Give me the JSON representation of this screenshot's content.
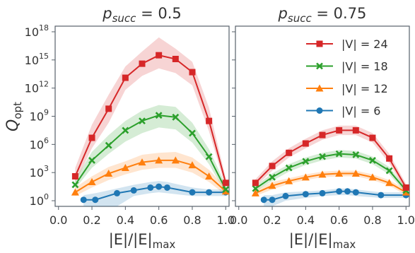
{
  "chart_data": [
    {
      "type": "line",
      "title_main": "p",
      "title_sub": "succ",
      "title_rest": " = 0.5",
      "xlabel_main": "|E|/|E|",
      "xlabel_sub": "max",
      "ylabel_main": "Q",
      "ylabel_sub": "opt",
      "y_scale": "log10",
      "ylim_exp": [
        -0.6,
        18.6
      ],
      "xlim": [
        0.0,
        1.0
      ],
      "x_ticks": [
        "0.0",
        "0.2",
        "0.4",
        "0.6",
        "0.8",
        "1.0"
      ],
      "y_ticks": [
        {
          "exp": 0,
          "base": "10",
          "power": "0"
        },
        {
          "exp": 3,
          "base": "10",
          "power": "3"
        },
        {
          "exp": 6,
          "base": "10",
          "power": "6"
        },
        {
          "exp": 9,
          "base": "10",
          "power": "9"
        },
        {
          "exp": 12,
          "base": "10",
          "power": "12"
        },
        {
          "exp": 15,
          "base": "10",
          "power": "15"
        },
        {
          "exp": 18,
          "base": "10",
          "power": "18"
        }
      ],
      "series": [
        {
          "name": "|V| = 24",
          "color": "#d62728",
          "marker": "square",
          "x": [
            0.1,
            0.2,
            0.3,
            0.4,
            0.5,
            0.6,
            0.7,
            0.8,
            0.9,
            1.0
          ],
          "log10_y": [
            2.6,
            6.7,
            9.8,
            13.1,
            14.6,
            15.5,
            15.1,
            13.7,
            8.5,
            1.9
          ],
          "band_low": [
            1.9,
            5.6,
            8.3,
            11.8,
            13.3,
            14.1,
            13.6,
            12.3,
            7.4,
            1.4
          ],
          "band_high": [
            3.5,
            8.1,
            11.3,
            14.3,
            15.9,
            17.4,
            16.2,
            14.8,
            9.9,
            2.4
          ]
        },
        {
          "name": "|V| = 18",
          "color": "#2ca02c",
          "marker": "x",
          "x": [
            0.1,
            0.2,
            0.3,
            0.4,
            0.5,
            0.6,
            0.7,
            0.8,
            0.9,
            1.0
          ],
          "log10_y": [
            1.7,
            4.3,
            5.9,
            7.5,
            8.5,
            9.1,
            8.9,
            7.2,
            4.7,
            1.2
          ],
          "band_low": [
            1.3,
            3.5,
            5.0,
            6.3,
            7.2,
            7.8,
            7.6,
            6.2,
            3.9,
            0.8
          ],
          "band_high": [
            2.3,
            5.2,
            7.0,
            8.5,
            9.6,
            10.2,
            10.0,
            8.3,
            5.5,
            1.7
          ]
        },
        {
          "name": "|V| = 12",
          "color": "#ff7f0e",
          "marker": "triangle",
          "x": [
            0.1,
            0.2,
            0.3,
            0.4,
            0.5,
            0.6,
            0.7,
            0.8,
            0.9,
            1.0
          ],
          "log10_y": [
            0.9,
            2.0,
            2.9,
            3.5,
            4.1,
            4.3,
            4.3,
            3.8,
            2.6,
            1.0
          ],
          "band_low": [
            0.5,
            1.4,
            2.2,
            2.8,
            3.3,
            3.5,
            3.5,
            3.0,
            2.0,
            0.6
          ],
          "band_high": [
            1.4,
            2.6,
            3.6,
            4.2,
            4.9,
            5.1,
            5.2,
            4.6,
            3.3,
            1.4
          ]
        },
        {
          "name": "|V| = 6",
          "color": "#1f77b4",
          "marker": "circle",
          "x": [
            0.15,
            0.22,
            0.35,
            0.45,
            0.55,
            0.6,
            0.65,
            0.8,
            0.9,
            1.0
          ],
          "log10_y": [
            0.1,
            0.1,
            0.8,
            1.1,
            1.4,
            1.5,
            1.4,
            0.9,
            0.9,
            0.9
          ],
          "band_low": [
            -0.6,
            -0.6,
            -0.6,
            0.5,
            0.8,
            0.9,
            0.8,
            0.5,
            0.5,
            0.5
          ],
          "band_high": [
            0.6,
            0.8,
            1.3,
            1.7,
            2.0,
            2.1,
            2.0,
            1.4,
            1.2,
            1.2
          ]
        }
      ]
    },
    {
      "type": "line",
      "title_main": "p",
      "title_sub": "succ",
      "title_rest": " = 0.75",
      "xlabel_main": "|E|/|E|",
      "xlabel_sub": "max",
      "y_scale": "log10",
      "ylim_exp": [
        -0.6,
        18.6
      ],
      "xlim": [
        0.0,
        1.0
      ],
      "x_ticks": [
        "0.0",
        "0.2",
        "0.4",
        "0.6",
        "0.8",
        "1.0"
      ],
      "legend_position": "upper-right",
      "series": [
        {
          "name": "|V| = 24",
          "color": "#d62728",
          "marker": "square",
          "x": [
            0.1,
            0.2,
            0.3,
            0.4,
            0.5,
            0.6,
            0.7,
            0.8,
            0.9,
            1.0
          ],
          "log10_y": [
            1.9,
            3.7,
            5.1,
            6.1,
            7.0,
            7.5,
            7.5,
            6.7,
            4.5,
            1.4
          ],
          "band_low": [
            1.5,
            3.2,
            4.6,
            5.6,
            6.5,
            7.0,
            7.0,
            6.2,
            4.0,
            1.0
          ],
          "band_high": [
            2.3,
            4.2,
            5.6,
            6.6,
            7.5,
            8.0,
            8.0,
            7.2,
            5.0,
            1.8
          ]
        },
        {
          "name": "|V| = 18",
          "color": "#2ca02c",
          "marker": "x",
          "x": [
            0.1,
            0.2,
            0.3,
            0.4,
            0.5,
            0.6,
            0.7,
            0.8,
            0.9,
            1.0
          ],
          "log10_y": [
            1.3,
            2.5,
            3.5,
            4.2,
            4.7,
            5.0,
            4.9,
            4.3,
            3.2,
            1.1
          ],
          "band_low": [
            1.0,
            2.1,
            3.1,
            3.8,
            4.3,
            4.6,
            4.5,
            3.9,
            2.8,
            0.8
          ],
          "band_high": [
            1.6,
            2.9,
            3.9,
            4.6,
            5.1,
            5.4,
            5.3,
            4.7,
            3.6,
            1.4
          ]
        },
        {
          "name": "|V| = 12",
          "color": "#ff7f0e",
          "marker": "triangle",
          "x": [
            0.1,
            0.2,
            0.3,
            0.4,
            0.5,
            0.6,
            0.7,
            0.8,
            0.9,
            1.0
          ],
          "log10_y": [
            0.8,
            1.6,
            2.1,
            2.5,
            2.8,
            2.9,
            2.9,
            2.5,
            1.9,
            0.9
          ],
          "band_low": [
            0.5,
            1.2,
            1.8,
            2.2,
            2.5,
            2.6,
            2.6,
            2.2,
            1.6,
            0.6
          ],
          "band_high": [
            1.1,
            2.0,
            2.4,
            2.8,
            3.1,
            3.2,
            3.2,
            2.8,
            2.2,
            1.2
          ]
        },
        {
          "name": "|V| = 6",
          "color": "#1f77b4",
          "marker": "circle",
          "x": [
            0.15,
            0.2,
            0.28,
            0.4,
            0.5,
            0.6,
            0.65,
            0.7,
            0.85,
            1.0
          ],
          "log10_y": [
            0.1,
            0.1,
            0.5,
            0.7,
            0.8,
            1.0,
            1.0,
            0.9,
            0.6,
            0.6
          ],
          "band_low": [
            -0.6,
            -0.6,
            0.0,
            0.3,
            0.5,
            0.6,
            0.6,
            0.5,
            0.3,
            0.3
          ],
          "band_high": [
            0.6,
            0.6,
            0.9,
            1.0,
            1.1,
            1.3,
            1.3,
            1.2,
            0.9,
            0.9
          ]
        }
      ]
    }
  ]
}
